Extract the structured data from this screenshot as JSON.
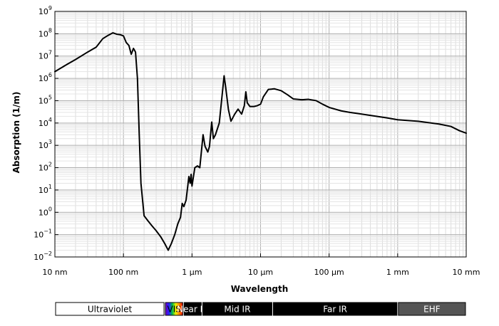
{
  "chart_data": {
    "type": "line",
    "title": "",
    "xlabel": "Wavelength",
    "ylabel": "Absorption (1/m)",
    "x_scale": "log",
    "y_scale": "log",
    "x_unit": "m",
    "y_unit": "1/m",
    "xlim": [
      1e-08,
      0.01
    ],
    "ylim": [
      0.01,
      1000000000
    ],
    "grid": true,
    "legend": "none",
    "x_ticks": [
      {
        "value": 1e-08,
        "label": "10 nm"
      },
      {
        "value": 1e-07,
        "label": "100 nm"
      },
      {
        "value": 1e-06,
        "label": "1 µm"
      },
      {
        "value": 1e-05,
        "label": "10 µm"
      },
      {
        "value": 0.0001,
        "label": "100 µm"
      },
      {
        "value": 0.001,
        "label": "1 mm"
      },
      {
        "value": 0.01,
        "label": "10 mm"
      }
    ],
    "y_ticks": [
      {
        "value": 0.01,
        "base": "10",
        "exp": "−2"
      },
      {
        "value": 0.1,
        "base": "10",
        "exp": "−1"
      },
      {
        "value": 1,
        "base": "10",
        "exp": "0"
      },
      {
        "value": 10,
        "base": "10",
        "exp": "1"
      },
      {
        "value": 100,
        "base": "10",
        "exp": "2"
      },
      {
        "value": 1000,
        "base": "10",
        "exp": "3"
      },
      {
        "value": 10000,
        "base": "10",
        "exp": "4"
      },
      {
        "value": 100000,
        "base": "10",
        "exp": "5"
      },
      {
        "value": 1000000,
        "base": "10",
        "exp": "6"
      },
      {
        "value": 10000000,
        "base": "10",
        "exp": "7"
      },
      {
        "value": 100000000,
        "base": "10",
        "exp": "8"
      },
      {
        "value": 1000000000,
        "base": "10",
        "exp": "9"
      }
    ],
    "series": [
      {
        "color": "#000000",
        "points": [
          [
            1e-08,
            2000000
          ],
          [
            1.5e-08,
            4200000
          ],
          [
            2e-08,
            7000000
          ],
          [
            3e-08,
            15000000
          ],
          [
            4e-08,
            25000000
          ],
          [
            5e-08,
            60000000
          ],
          [
            6e-08,
            85000000
          ],
          [
            7e-08,
            110000000
          ],
          [
            8e-08,
            95000000
          ],
          [
            9e-08,
            90000000
          ],
          [
            1e-07,
            80000000
          ],
          [
            1.1e-07,
            40000000
          ],
          [
            1.2e-07,
            30000000
          ],
          [
            1.3e-07,
            12000000
          ],
          [
            1.4e-07,
            22000000
          ],
          [
            1.5e-07,
            15000000
          ],
          [
            1.6e-07,
            1000000
          ],
          [
            1.7e-07,
            3000
          ],
          [
            1.8e-07,
            20
          ],
          [
            2e-07,
            0.7
          ],
          [
            2.3e-07,
            0.4
          ],
          [
            2.6e-07,
            0.25
          ],
          [
            3e-07,
            0.15
          ],
          [
            3.5e-07,
            0.08
          ],
          [
            4e-07,
            0.04
          ],
          [
            4.5e-07,
            0.02
          ],
          [
            5e-07,
            0.04
          ],
          [
            5.6e-07,
            0.1
          ],
          [
            6.2e-07,
            0.3
          ],
          [
            6.8e-07,
            0.6
          ],
          [
            7.2e-07,
            2.5
          ],
          [
            7.6e-07,
            1.8
          ],
          [
            8.2e-07,
            3.5
          ],
          [
            9e-07,
            40
          ],
          [
            9.4e-07,
            20
          ],
          [
            9.7e-07,
            50
          ],
          [
            1e-06,
            15
          ],
          [
            1.1e-06,
            100
          ],
          [
            1.2e-06,
            120
          ],
          [
            1.3e-06,
            100
          ],
          [
            1.45e-06,
            3000
          ],
          [
            1.55e-06,
            900
          ],
          [
            1.7e-06,
            500
          ],
          [
            1.8e-06,
            900
          ],
          [
            1.94e-06,
            11000
          ],
          [
            2.05e-06,
            2000
          ],
          [
            2.2e-06,
            3000
          ],
          [
            2.5e-06,
            10000
          ],
          [
            2.8e-06,
            300000
          ],
          [
            2.94e-06,
            1300000
          ],
          [
            3.1e-06,
            400000
          ],
          [
            3.4e-06,
            40000
          ],
          [
            3.7e-06,
            12000
          ],
          [
            4.2e-06,
            25000
          ],
          [
            4.7e-06,
            42000
          ],
          [
            5.3e-06,
            25000
          ],
          [
            5.8e-06,
            60000
          ],
          [
            6.1e-06,
            250000
          ],
          [
            6.4e-06,
            80000
          ],
          [
            7e-06,
            55000
          ],
          [
            8e-06,
            55000
          ],
          [
            9e-06,
            60000
          ],
          [
            1e-05,
            70000
          ],
          [
            1.1e-05,
            150000
          ],
          [
            1.3e-05,
            320000
          ],
          [
            1.6e-05,
            340000
          ],
          [
            2e-05,
            280000
          ],
          [
            2.5e-05,
            180000
          ],
          [
            3e-05,
            120000
          ],
          [
            4e-05,
            110000
          ],
          [
            5e-05,
            115000
          ],
          [
            6.5e-05,
            100000
          ],
          [
            8e-05,
            70000
          ],
          [
            0.0001,
            50000
          ],
          [
            0.00015,
            35000
          ],
          [
            0.0002,
            30000
          ],
          [
            0.0004,
            22000
          ],
          [
            0.0007,
            17000
          ],
          [
            0.001,
            14000
          ],
          [
            0.002,
            12000
          ],
          [
            0.004,
            9000
          ],
          [
            0.006,
            7000
          ],
          [
            0.008,
            4500
          ],
          [
            0.01,
            3500
          ]
        ]
      }
    ],
    "bands": [
      {
        "name": "uv",
        "label": "Ultraviolet",
        "range": [
          1e-08,
          4e-07
        ],
        "fill": "#ffffff",
        "text": "#000000"
      },
      {
        "name": "vis",
        "label": "VIS",
        "range": [
          4e-07,
          7.5e-07
        ],
        "fill": "spectrum",
        "text": "#000000"
      },
      {
        "name": "near-ir",
        "label": "Near IR",
        "range": [
          7.5e-07,
          1.4e-06
        ],
        "fill": "#000000",
        "text": "#ffffff"
      },
      {
        "name": "mid-ir",
        "label": "Mid IR",
        "range": [
          1.4e-06,
          1.5e-05
        ],
        "fill": "#000000",
        "text": "#ffffff"
      },
      {
        "name": "far-ir",
        "label": "Far IR",
        "range": [
          1.5e-05,
          0.001
        ],
        "fill": "#000000",
        "text": "#ffffff"
      },
      {
        "name": "ehf",
        "label": "EHF",
        "range": [
          0.001,
          0.01
        ],
        "fill": "#555555",
        "text": "#ffffff"
      }
    ]
  }
}
